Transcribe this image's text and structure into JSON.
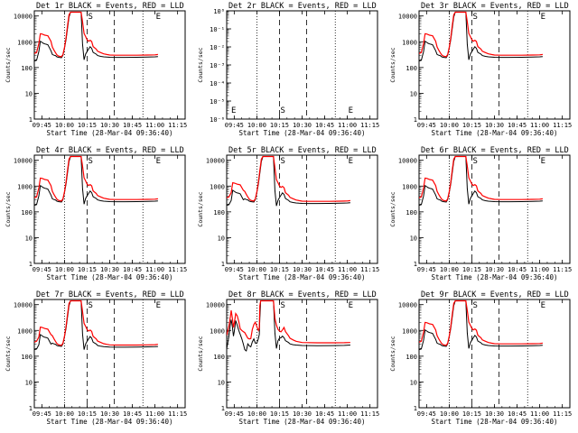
{
  "chart_data": {
    "type": "line",
    "layout": "3x3 grid",
    "x_tick_labels": [
      "09:45",
      "10:00",
      "10:15",
      "10:30",
      "10:45",
      "11:00",
      "11:15"
    ],
    "x_range_minutes_after_0930": [
      10,
      110
    ],
    "xlabel": "Start Time (28-Mar-04 09:36:40)",
    "ylabel": "Counts/sec",
    "y_scale": "log",
    "y_tick_labels": [
      "1",
      "10",
      "100",
      "1000",
      "10000"
    ],
    "colors": {
      "events": "#000000",
      "lld": "#ff0000"
    },
    "markers": [
      {
        "label": "S",
        "time": "10:15"
      },
      {
        "label": "E",
        "time": "11:00"
      }
    ],
    "dashed_lines": [
      "10:15",
      "10:33"
    ],
    "dotted_lines": [
      "10:00",
      "10:52"
    ],
    "panels": [
      {
        "title": "Det 1r BLACK = Events, RED = LLD",
        "empty": false,
        "variant": "a",
        "peak": 2050,
        "scale": 1.0
      },
      {
        "title": "Det 2r BLACK = Events, RED = LLD",
        "empty": true,
        "y_tick_labels": [
          "10⁻⁶",
          "10⁻⁵",
          "10⁻⁴",
          "10⁻³",
          "10⁻²",
          "10⁻¹",
          "10⁰"
        ],
        "marker_labels": [
          "E",
          "S",
          "E"
        ]
      },
      {
        "title": "Det 3r BLACK = Events, RED = LLD",
        "empty": false,
        "variant": "a",
        "peak": 2050,
        "scale": 1.0
      },
      {
        "title": "Det 4r BLACK = Events, RED = LLD",
        "empty": false,
        "variant": "a",
        "peak": 2050,
        "scale": 1.0
      },
      {
        "title": "Det 5r BLACK = Events, RED = LLD",
        "empty": false,
        "variant": "a",
        "peak": 1350,
        "scale": 0.85
      },
      {
        "title": "Det 6r BLACK = Events, RED = LLD",
        "empty": false,
        "variant": "a",
        "peak": 2050,
        "scale": 1.0
      },
      {
        "title": "Det 7r BLACK = Events, RED = LLD",
        "empty": false,
        "variant": "a",
        "peak": 1350,
        "scale": 0.9
      },
      {
        "title": "Det 8r BLACK = Events, RED = LLD",
        "empty": false,
        "variant": "b",
        "peak": 6000,
        "scale": 1.0
      },
      {
        "title": "Det 9r BLACK = Events, RED = LLD",
        "empty": false,
        "variant": "a",
        "peak": 2050,
        "scale": 1.0
      }
    ]
  }
}
